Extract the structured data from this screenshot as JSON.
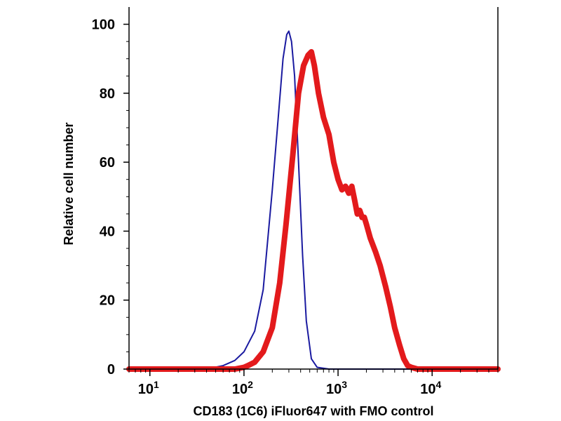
{
  "chart_data": {
    "type": "line",
    "title": "",
    "xlabel": "CD183 (1C6) iFluor647 with FMO control",
    "ylabel": "Relative cell number",
    "x_scale": "log",
    "xlim": [
      6,
      50000
    ],
    "ylim": [
      0,
      105
    ],
    "grid": false,
    "legend": "none",
    "y_ticks": [
      0,
      20,
      40,
      60,
      80,
      100
    ],
    "x_ticks": [
      {
        "value": 10,
        "base": "10",
        "exp": "1"
      },
      {
        "value": 100,
        "base": "10",
        "exp": "2"
      },
      {
        "value": 1000,
        "base": "10",
        "exp": "3"
      },
      {
        "value": 10000,
        "base": "10",
        "exp": "4"
      }
    ],
    "series": [
      {
        "color": "#1a1aa0",
        "line_weight": "thin",
        "x": [
          6,
          15,
          30,
          45,
          60,
          80,
          100,
          130,
          160,
          200,
          230,
          260,
          285,
          300,
          320,
          345,
          380,
          420,
          460,
          520,
          600,
          800,
          1000,
          3000,
          10000,
          50000
        ],
        "y": [
          0,
          0,
          0,
          0.3,
          1,
          2.5,
          5,
          11,
          23,
          52,
          72,
          90,
          97,
          98,
          95,
          85,
          60,
          33,
          14,
          3,
          0.5,
          0,
          0,
          0,
          0,
          0
        ]
      },
      {
        "color": "#e31a1c",
        "line_weight": "thick",
        "x": [
          6,
          50,
          80,
          100,
          110,
          130,
          160,
          200,
          240,
          280,
          330,
          380,
          430,
          480,
          520,
          560,
          620,
          700,
          800,
          900,
          1000,
          1100,
          1200,
          1300,
          1400,
          1500,
          1600,
          1700,
          1800,
          1900,
          2000,
          2200,
          2500,
          2800,
          3200,
          3600,
          4000,
          4500,
          5000,
          5500,
          6000,
          7000,
          8000,
          10000,
          20000,
          50000
        ],
        "y": [
          0,
          0,
          0,
          0.5,
          1,
          2,
          5,
          12,
          25,
          42,
          62,
          80,
          88,
          91,
          92,
          88,
          80,
          73,
          68,
          60,
          55,
          52,
          53,
          51,
          53,
          49,
          45,
          46,
          44,
          44,
          42,
          38,
          34,
          30,
          24,
          18,
          12,
          7,
          3,
          1,
          0.5,
          0,
          0,
          0,
          0,
          0
        ]
      }
    ]
  }
}
